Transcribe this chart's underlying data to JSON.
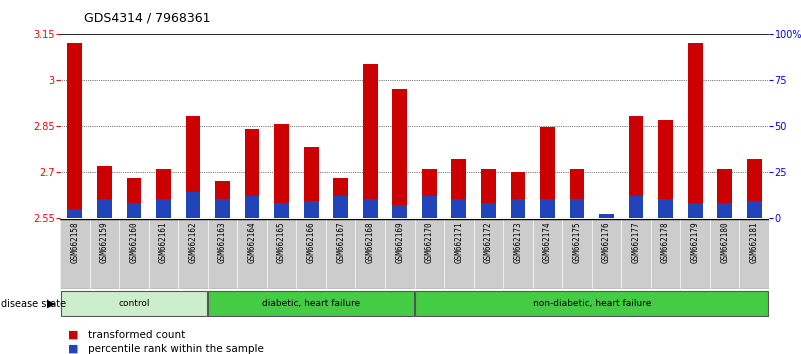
{
  "title": "GDS4314 / 7968361",
  "samples": [
    "GSM662158",
    "GSM662159",
    "GSM662160",
    "GSM662161",
    "GSM662162",
    "GSM662163",
    "GSM662164",
    "GSM662165",
    "GSM662166",
    "GSM662167",
    "GSM662168",
    "GSM662169",
    "GSM662170",
    "GSM662171",
    "GSM662172",
    "GSM662173",
    "GSM662174",
    "GSM662175",
    "GSM662176",
    "GSM662177",
    "GSM662178",
    "GSM662179",
    "GSM662180",
    "GSM662181"
  ],
  "red_values": [
    3.12,
    2.72,
    2.68,
    2.71,
    2.88,
    2.67,
    2.84,
    2.855,
    2.78,
    2.68,
    3.05,
    2.97,
    2.71,
    2.74,
    2.71,
    2.7,
    2.845,
    2.71,
    2.56,
    2.88,
    2.87,
    3.12,
    2.71,
    2.74
  ],
  "blue_percentiles": [
    5,
    10,
    8,
    10,
    14,
    10,
    12,
    8,
    9,
    12,
    10,
    7,
    12,
    10,
    8,
    10,
    10,
    10,
    2,
    12,
    10,
    8,
    8,
    9
  ],
  "ymin": 2.55,
  "ymax": 3.15,
  "yticks_left": [
    2.55,
    2.7,
    2.85,
    3.0,
    3.15
  ],
  "ytick_labels_left": [
    "2.55",
    "2.7",
    "2.85",
    "3",
    "3.15"
  ],
  "yticks_right": [
    0,
    25,
    50,
    75,
    100
  ],
  "ytick_labels_right": [
    "0",
    "25",
    "50",
    "75",
    "100%"
  ],
  "grid_values": [
    2.7,
    2.85,
    3.0
  ],
  "bar_color_red": "#cc0000",
  "bar_color_blue": "#2244bb",
  "bg_color_xtick": "#cccccc",
  "group_configs": [
    {
      "label": "control",
      "start": 0,
      "end": 5,
      "color": "#cceecc"
    },
    {
      "label": "diabetic, heart failure",
      "start": 5,
      "end": 12,
      "color": "#44cc44"
    },
    {
      "label": "non-diabetic, heart failure",
      "start": 12,
      "end": 24,
      "color": "#44cc44"
    }
  ],
  "legend_items": [
    {
      "label": "transformed count",
      "color": "#cc0000"
    },
    {
      "label": "percentile rank within the sample",
      "color": "#2244bb"
    }
  ],
  "disease_state_label": "disease state",
  "title_fontsize": 9,
  "tick_fontsize": 7,
  "label_fontsize": 7,
  "legend_fontsize": 7.5
}
